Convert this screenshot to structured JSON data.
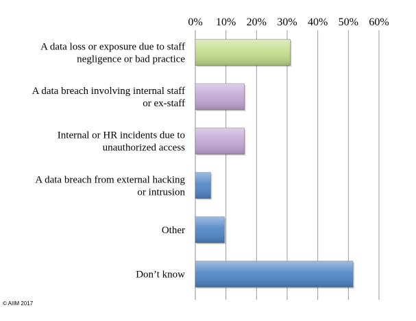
{
  "chart_data": {
    "type": "bar",
    "orientation": "horizontal",
    "categories": [
      [
        "A data loss or exposure due to staff",
        "negligence or bad practice"
      ],
      [
        "A data breach involving internal staff",
        "or ex-staff"
      ],
      [
        "Internal or HR incidents due to",
        "unauthorized access"
      ],
      [
        "A data breach from external hacking",
        "or intrusion"
      ],
      [
        "Other"
      ],
      [
        "Don’t know"
      ]
    ],
    "values": [
      31,
      16,
      16,
      5,
      9.5,
      51.5
    ],
    "colors": [
      "#c4dd8c",
      "#c3a6d6",
      "#c3a6d6",
      "#4f86c6",
      "#4f86c6",
      "#4f86c6"
    ],
    "x_ticks": [
      "0%",
      "10%",
      "20%",
      "30%",
      "40%",
      "50%",
      "60%"
    ],
    "xlim": [
      0,
      60
    ],
    "x_axis_position": "top",
    "grid": true,
    "title": "",
    "xlabel": "",
    "ylabel": ""
  },
  "footer": {
    "copyright": "© AIIM 2017"
  }
}
